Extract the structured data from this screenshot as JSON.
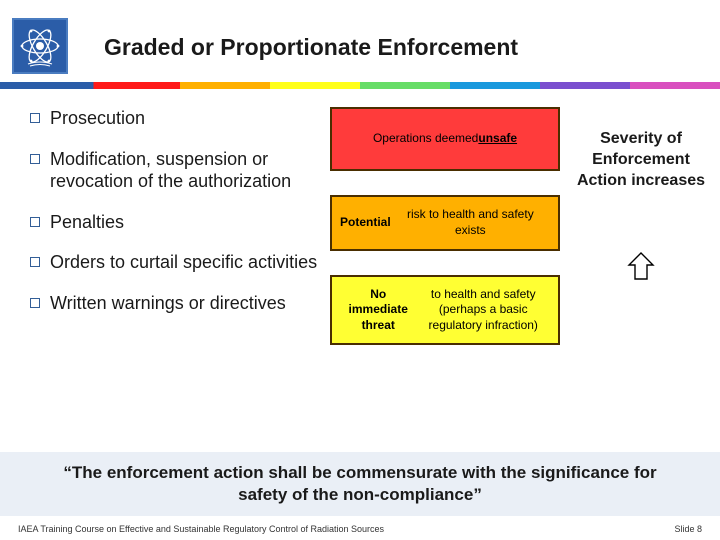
{
  "title": "Graded or Proportionate Enforcement",
  "bullets": [
    "Prosecution",
    "Modification, suspension or revocation of the authorization",
    "Penalties",
    "Orders to curtail specific activities",
    "Written warnings or directives"
  ],
  "boxes": {
    "red_html": "Operations deemed <u>unsafe</u>",
    "orange_html": "<b>Potential</b> risk to health and safety exists",
    "yellow_html": "<b>No immediate threat</b> to health and safety<br>(perhaps a basic regulatory infraction)"
  },
  "box_colors": {
    "red": "#ff3b3b",
    "orange": "#ffb000",
    "yellow": "#ffff33",
    "border": "#4a2e00"
  },
  "right_label": "Severity of Enforcement Action increases",
  "quote": "“The enforcement action shall be commensurate with the significance for safety of the non-compliance”",
  "footer_left": "IAEA Training Course on Effective and Sustainable Regulatory Control of Radiation Sources",
  "footer_right": "Slide 8",
  "logo_color": "#2b5da8",
  "band_color": "#eaeff6"
}
